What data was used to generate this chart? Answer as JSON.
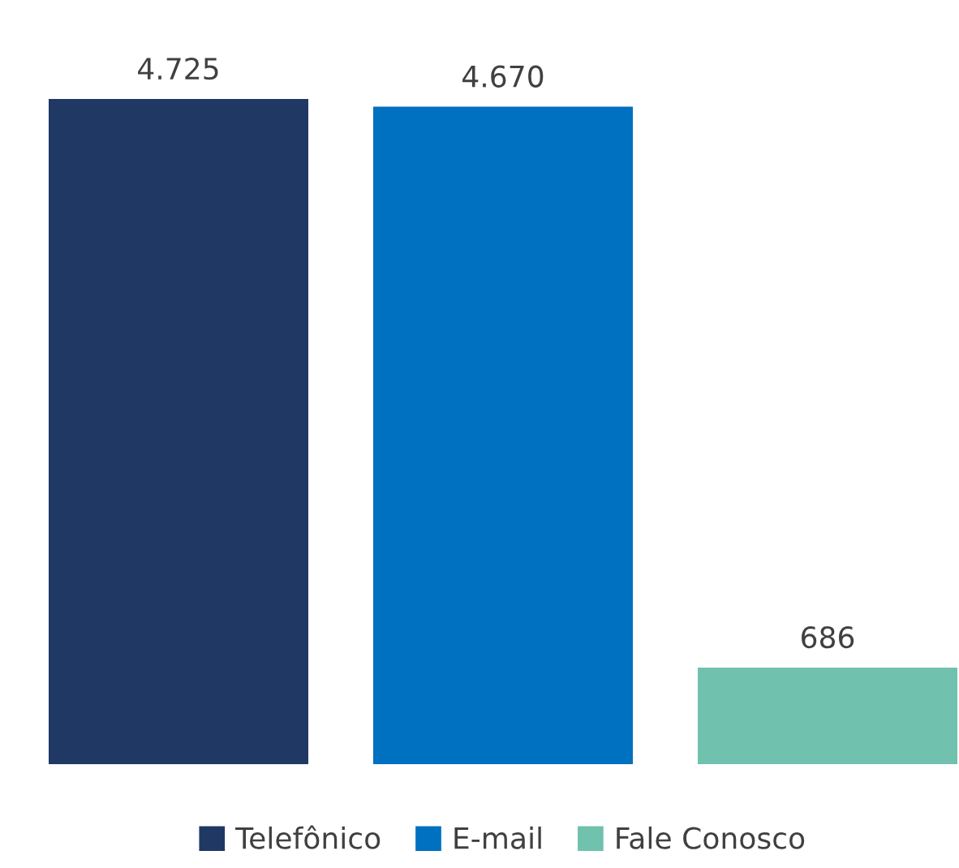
{
  "chart_data": {
    "type": "bar",
    "categories": [
      null
    ],
    "series": [
      {
        "name": "Telefônico",
        "color": "#203864",
        "values": [
          4725
        ],
        "value_labels": [
          "4.725"
        ]
      },
      {
        "name": "E-mail",
        "color": "#0070c0",
        "values": [
          4670
        ],
        "value_labels": [
          "4.670"
        ]
      },
      {
        "name": "Fale Conosco",
        "color": "#70c1ad",
        "values": [
          686
        ],
        "value_labels": [
          "686"
        ]
      }
    ],
    "legend": "bottom"
  }
}
